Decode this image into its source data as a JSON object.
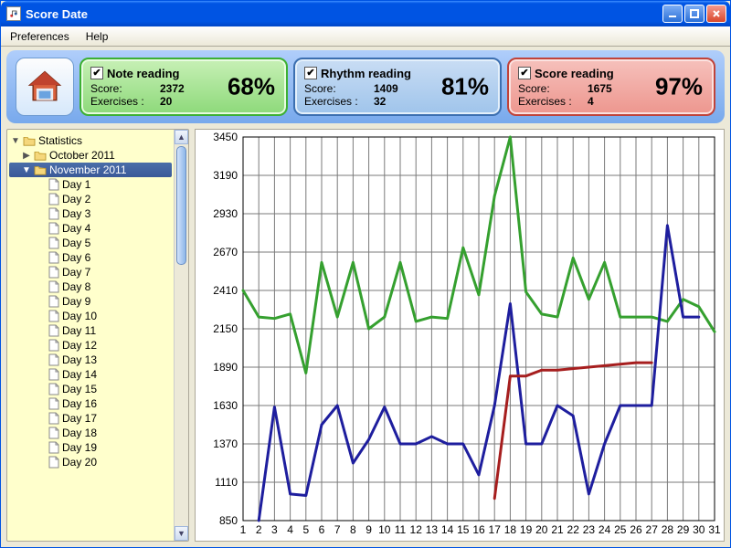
{
  "window": {
    "title": "Score Date"
  },
  "menu": {
    "preferences": "Preferences",
    "help": "Help"
  },
  "cards": {
    "note": {
      "title": "Note reading",
      "score_label": "Score:",
      "score": "2372",
      "ex_label": "Exercises :",
      "ex": "20",
      "pct": "68%",
      "checked": true
    },
    "rhythm": {
      "title": "Rhythm reading",
      "score_label": "Score:",
      "score": "1409",
      "ex_label": "Exercises :",
      "ex": "32",
      "pct": "81%",
      "checked": true
    },
    "score": {
      "title": "Score reading",
      "score_label": "Score:",
      "score": "1675",
      "ex_label": "Exercises :",
      "ex": "4",
      "pct": "97%",
      "checked": true
    }
  },
  "tree": {
    "root": "Statistics",
    "october": "October 2011",
    "november": "November 2011",
    "day_prefix": "Day ",
    "days_shown": 20
  },
  "chart": {
    "type": "line",
    "xlim": [
      1,
      31
    ],
    "ylim": [
      850,
      3450
    ],
    "yticks": [
      850,
      1110,
      1370,
      1630,
      1890,
      2150,
      2410,
      2670,
      2930,
      3190,
      3450
    ],
    "xticks": [
      1,
      2,
      3,
      4,
      5,
      6,
      7,
      8,
      9,
      10,
      11,
      12,
      13,
      14,
      15,
      16,
      17,
      18,
      19,
      20,
      21,
      22,
      23,
      24,
      25,
      26,
      27,
      28,
      29,
      30,
      31
    ],
    "background_color": "#ffffff",
    "grid_color": "#7a7a7a",
    "grid_width": 1,
    "line_width": 3,
    "series": {
      "green": {
        "color": "#35a02f",
        "points": [
          [
            1,
            2410
          ],
          [
            2,
            2230
          ],
          [
            3,
            2220
          ],
          [
            4,
            2250
          ],
          [
            5,
            1850
          ],
          [
            6,
            2600
          ],
          [
            7,
            2230
          ],
          [
            8,
            2600
          ],
          [
            9,
            2150
          ],
          [
            10,
            2230
          ],
          [
            11,
            2600
          ],
          [
            12,
            2200
          ],
          [
            13,
            2230
          ],
          [
            14,
            2220
          ],
          [
            15,
            2700
          ],
          [
            16,
            2380
          ],
          [
            17,
            3050
          ],
          [
            18,
            3450
          ],
          [
            19,
            2400
          ],
          [
            20,
            2250
          ],
          [
            21,
            2230
          ],
          [
            22,
            2630
          ],
          [
            23,
            2350
          ],
          [
            24,
            2600
          ],
          [
            25,
            2230
          ],
          [
            26,
            2230
          ],
          [
            27,
            2230
          ],
          [
            28,
            2200
          ],
          [
            29,
            2350
          ],
          [
            30,
            2300
          ],
          [
            31,
            2130
          ]
        ]
      },
      "blue": {
        "color": "#1e1e9e",
        "points": [
          [
            2,
            850
          ],
          [
            3,
            1620
          ],
          [
            4,
            1030
          ],
          [
            5,
            1020
          ],
          [
            6,
            1500
          ],
          [
            7,
            1630
          ],
          [
            8,
            1240
          ],
          [
            9,
            1400
          ],
          [
            10,
            1620
          ],
          [
            11,
            1370
          ],
          [
            12,
            1370
          ],
          [
            13,
            1420
          ],
          [
            14,
            1370
          ],
          [
            15,
            1370
          ],
          [
            16,
            1160
          ],
          [
            17,
            1630
          ],
          [
            18,
            2320
          ],
          [
            19,
            1370
          ],
          [
            20,
            1370
          ],
          [
            21,
            1630
          ],
          [
            22,
            1560
          ],
          [
            23,
            1030
          ],
          [
            24,
            1370
          ],
          [
            25,
            1630
          ],
          [
            26,
            1630
          ],
          [
            27,
            1630
          ],
          [
            28,
            2850
          ],
          [
            29,
            2230
          ],
          [
            30,
            2230
          ]
        ]
      },
      "red": {
        "color": "#a61e1e",
        "points": [
          [
            17,
            1000
          ],
          [
            18,
            1830
          ],
          [
            19,
            1830
          ],
          [
            20,
            1870
          ],
          [
            21,
            1870
          ],
          [
            26,
            1920
          ],
          [
            27,
            1920
          ]
        ]
      }
    }
  }
}
